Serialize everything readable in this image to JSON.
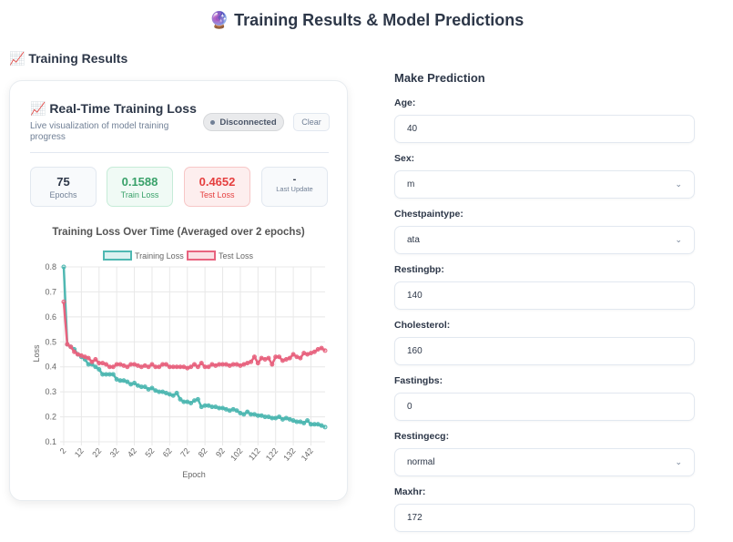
{
  "header": {
    "title": "🔮 Training Results & Model Predictions"
  },
  "section": {
    "title": "📈 Training Results"
  },
  "card": {
    "title": "📈 Real-Time Training Loss",
    "subtitle": "Live visualization of model training progress",
    "status": "Disconnected",
    "clear_label": "Clear",
    "stats": [
      {
        "value": "75",
        "label": "Epochs"
      },
      {
        "value": "0.1588",
        "label": "Train Loss"
      },
      {
        "value": "0.4652",
        "label": "Test Loss"
      },
      {
        "value": "-",
        "label": "Last Update"
      }
    ]
  },
  "chart_data": {
    "type": "line",
    "title": "Training Loss Over Time (Averaged over 2 epochs)",
    "xlabel": "Epoch",
    "ylabel": "Loss",
    "ylim": [
      0.1,
      0.8
    ],
    "yticks": [
      "0.1",
      "0.2",
      "0.3",
      "0.4",
      "0.5",
      "0.6",
      "0.7",
      "0.8"
    ],
    "xticks": [
      "2",
      "12",
      "22",
      "32",
      "42",
      "52",
      "62",
      "72",
      "82",
      "92",
      "102",
      "112",
      "122",
      "132",
      "142"
    ],
    "x_start": 2,
    "x_step": 2,
    "grid": true,
    "legend": "top",
    "series": [
      {
        "name": "Training Loss",
        "color": "#4fb8b2",
        "values": [
          0.8,
          0.49,
          0.48,
          0.47,
          0.45,
          0.44,
          0.43,
          0.41,
          0.41,
          0.4,
          0.39,
          0.37,
          0.37,
          0.37,
          0.37,
          0.35,
          0.345,
          0.345,
          0.34,
          0.33,
          0.335,
          0.325,
          0.32,
          0.32,
          0.31,
          0.315,
          0.305,
          0.3,
          0.3,
          0.295,
          0.29,
          0.285,
          0.295,
          0.27,
          0.26,
          0.26,
          0.255,
          0.265,
          0.27,
          0.24,
          0.245,
          0.245,
          0.24,
          0.24,
          0.235,
          0.235,
          0.23,
          0.225,
          0.23,
          0.225,
          0.215,
          0.21,
          0.22,
          0.21,
          0.21,
          0.205,
          0.205,
          0.2,
          0.2,
          0.195,
          0.195,
          0.2,
          0.19,
          0.195,
          0.19,
          0.185,
          0.18,
          0.18,
          0.175,
          0.185,
          0.17,
          0.17,
          0.17,
          0.165,
          0.159
        ]
      },
      {
        "name": "Test Loss",
        "color": "#e8637f",
        "values": [
          0.66,
          0.49,
          0.48,
          0.46,
          0.45,
          0.445,
          0.44,
          0.435,
          0.42,
          0.43,
          0.415,
          0.415,
          0.41,
          0.4,
          0.4,
          0.41,
          0.41,
          0.405,
          0.4,
          0.41,
          0.41,
          0.405,
          0.4,
          0.405,
          0.4,
          0.41,
          0.4,
          0.4,
          0.41,
          0.41,
          0.4,
          0.4,
          0.4,
          0.4,
          0.4,
          0.395,
          0.4,
          0.41,
          0.4,
          0.415,
          0.4,
          0.4,
          0.41,
          0.405,
          0.41,
          0.41,
          0.41,
          0.405,
          0.41,
          0.41,
          0.405,
          0.41,
          0.415,
          0.42,
          0.44,
          0.415,
          0.435,
          0.43,
          0.435,
          0.41,
          0.44,
          0.44,
          0.425,
          0.43,
          0.435,
          0.45,
          0.44,
          0.435,
          0.455,
          0.45,
          0.455,
          0.46,
          0.47,
          0.475,
          0.465
        ]
      }
    ]
  },
  "form": {
    "title": "Make Prediction",
    "fields": [
      {
        "label": "Age:",
        "value": "40"
      },
      {
        "label": "Sex:",
        "value": "m"
      },
      {
        "label": "Chestpaintype:",
        "value": "ata"
      },
      {
        "label": "Restingbp:",
        "value": "140"
      },
      {
        "label": "Cholesterol:",
        "value": "160"
      },
      {
        "label": "Fastingbs:",
        "value": "0"
      },
      {
        "label": "Restingecg:",
        "value": "normal"
      },
      {
        "label": "Maxhr:",
        "value": "172"
      }
    ]
  }
}
